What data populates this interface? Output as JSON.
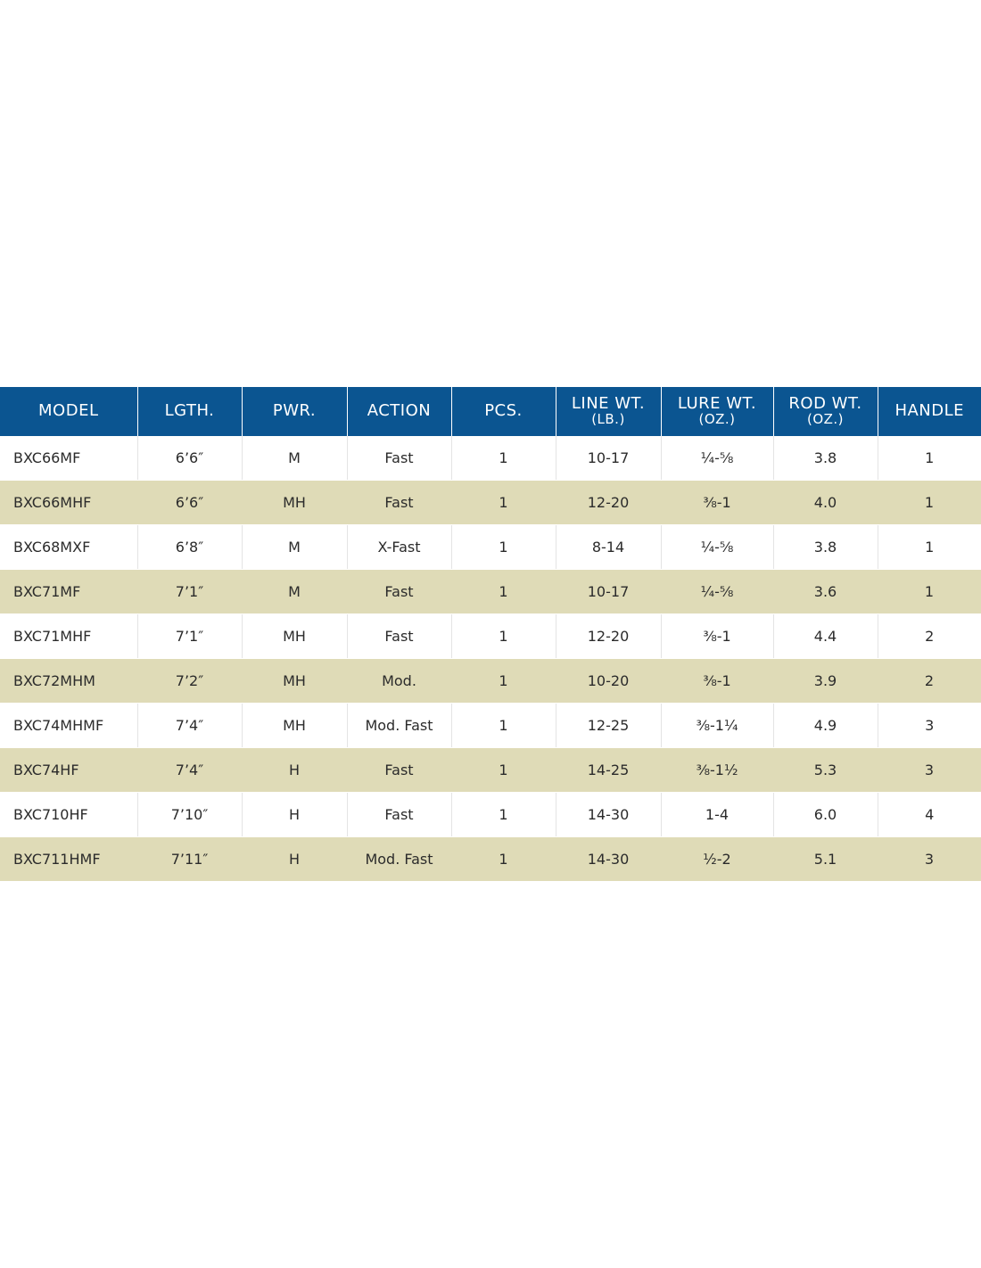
{
  "table": {
    "headers": [
      {
        "main": "MODEL",
        "sub": ""
      },
      {
        "main": "LGTH.",
        "sub": ""
      },
      {
        "main": "PWR.",
        "sub": ""
      },
      {
        "main": "ACTION",
        "sub": ""
      },
      {
        "main": "PCS.",
        "sub": ""
      },
      {
        "main": "LINE WT.",
        "sub": "(LB.)"
      },
      {
        "main": "LURE WT.",
        "sub": "(OZ.)"
      },
      {
        "main": "ROD WT.",
        "sub": "(OZ.)"
      },
      {
        "main": "HANDLE",
        "sub": ""
      }
    ],
    "rows": [
      [
        "BXC66MF",
        "6’6″",
        "M",
        "Fast",
        "1",
        "10-17",
        "¼-⅝",
        "3.8",
        "1"
      ],
      [
        "BXC66MHF",
        "6’6″",
        "MH",
        "Fast",
        "1",
        "12-20",
        "⅜-1",
        "4.0",
        "1"
      ],
      [
        "BXC68MXF",
        "6’8″",
        "M",
        "X-Fast",
        "1",
        "8-14",
        "¼-⅝",
        "3.8",
        "1"
      ],
      [
        "BXC71MF",
        "7’1″",
        "M",
        "Fast",
        "1",
        "10-17",
        "¼-⅝",
        "3.6",
        "1"
      ],
      [
        "BXC71MHF",
        "7’1″",
        "MH",
        "Fast",
        "1",
        "12-20",
        "⅜-1",
        "4.4",
        "2"
      ],
      [
        "BXC72MHM",
        "7’2″",
        "MH",
        "Mod.",
        "1",
        "10-20",
        "⅜-1",
        "3.9",
        "2"
      ],
      [
        "BXC74MHMF",
        "7’4″",
        "MH",
        "Mod. Fast",
        "1",
        "12-25",
        "⅜-1¼",
        "4.9",
        "3"
      ],
      [
        "BXC74HF",
        "7’4″",
        "H",
        "Fast",
        "1",
        "14-25",
        "⅜-1½",
        "5.3",
        "3"
      ],
      [
        "BXC710HF",
        "7’10″",
        "H",
        "Fast",
        "1",
        "14-30",
        "1-4",
        "6.0",
        "4"
      ],
      [
        "BXC711HMF",
        "7’11″",
        "H",
        "Mod. Fast",
        "1",
        "14-30",
        "½-2",
        "5.1",
        "3"
      ]
    ]
  },
  "colors": {
    "header_bg": "#0b5591",
    "header_text": "#ffffff",
    "alt_row_bg": "#dfdbb7",
    "row_bg": "#ffffff",
    "body_text": "#2b2b2b"
  }
}
